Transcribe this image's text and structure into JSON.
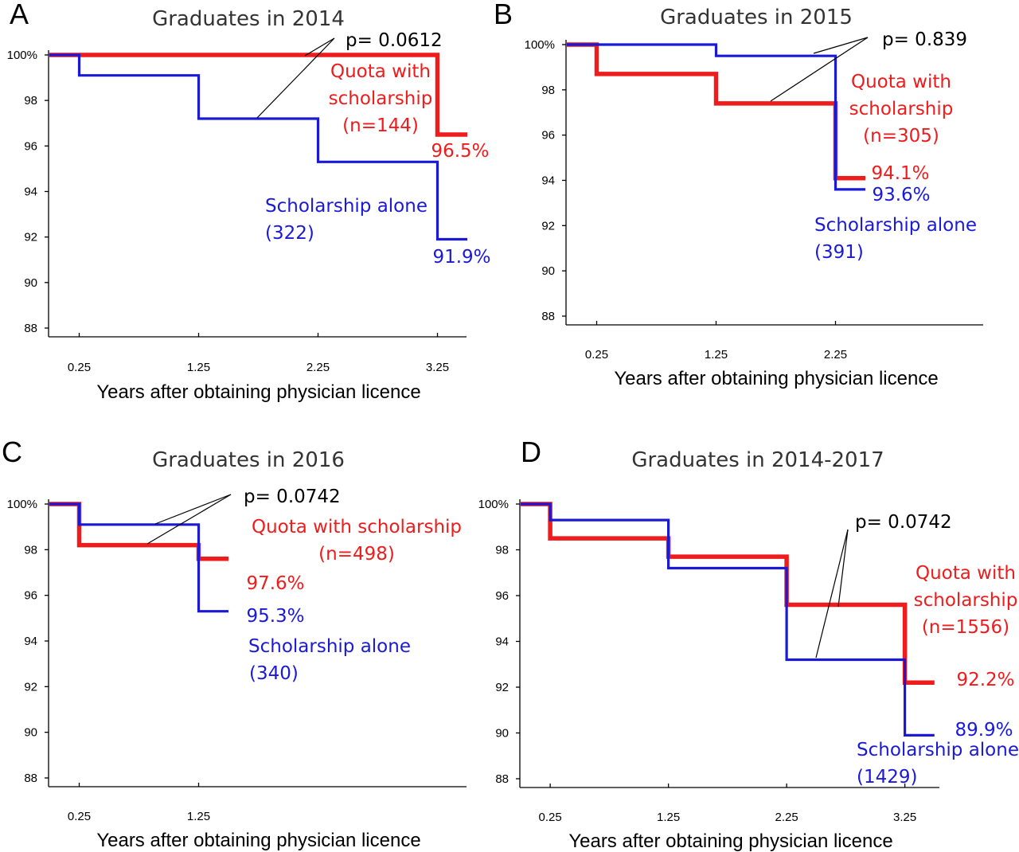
{
  "colors": {
    "quota": "#ee1c1c",
    "scholarship": "#1a1ad6"
  },
  "chart_data": [
    {
      "type": "line",
      "step": true,
      "panel": "A",
      "title": "Graduates in 2014",
      "xlabel": "Years after obtaining physician licence",
      "x_ticks": [
        "0.25",
        "1.25",
        "2.25",
        "3.25"
      ],
      "y_ticks": [
        "100%",
        "98",
        "96",
        "94",
        "92",
        "90",
        "88"
      ],
      "ylim": [
        88,
        100
      ],
      "series": [
        {
          "key": "quota",
          "points": [
            [
              0,
              100
            ],
            [
              3.25,
              100
            ],
            [
              3.25,
              96.5
            ],
            [
              3.5,
              96.5
            ]
          ]
        },
        {
          "key": "scholarship",
          "points": [
            [
              0,
              100
            ],
            [
              0.25,
              100
            ],
            [
              0.25,
              99.1
            ],
            [
              1.25,
              99.1
            ],
            [
              1.25,
              97.2
            ],
            [
              2.25,
              97.2
            ],
            [
              2.25,
              95.3
            ],
            [
              3.25,
              95.3
            ],
            [
              3.25,
              91.9
            ],
            [
              3.5,
              91.9
            ]
          ]
        }
      ],
      "p_value": "p= 0.0612",
      "quota_label": [
        "Quota with",
        "scholarship",
        "(n=144)"
      ],
      "quota_end": "96.5%",
      "scholarship_label": [
        "Scholarship alone",
        "(322)"
      ],
      "scholarship_end": "91.9%"
    },
    {
      "type": "line",
      "step": true,
      "panel": "B",
      "title": "Graduates in 2015",
      "xlabel": "Years after obtaining physician licence",
      "x_ticks": [
        "0.25",
        "1.25",
        "2.25"
      ],
      "y_ticks": [
        "100%",
        "98",
        "96",
        "94",
        "92",
        "90",
        "88"
      ],
      "ylim": [
        88,
        100
      ],
      "series": [
        {
          "key": "quota",
          "points": [
            [
              0,
              100
            ],
            [
              0.25,
              100
            ],
            [
              0.25,
              98.7
            ],
            [
              1.25,
              98.7
            ],
            [
              1.25,
              97.4
            ],
            [
              2.25,
              97.4
            ],
            [
              2.25,
              94.1
            ],
            [
              2.5,
              94.1
            ]
          ]
        },
        {
          "key": "scholarship",
          "points": [
            [
              0,
              100
            ],
            [
              1.25,
              100
            ],
            [
              1.25,
              99.5
            ],
            [
              2.25,
              99.5
            ],
            [
              2.25,
              93.6
            ],
            [
              2.5,
              93.6
            ]
          ]
        }
      ],
      "p_value": "p= 0.839",
      "quota_label": [
        "Quota with",
        "scholarship",
        "(n=305)"
      ],
      "quota_end": "94.1%",
      "scholarship_label": [
        "Scholarship alone",
        "(391)"
      ],
      "scholarship_end": "93.6%"
    },
    {
      "type": "line",
      "step": true,
      "panel": "C",
      "title": "Graduates in 2016",
      "xlabel": "Years after obtaining physician licence",
      "x_ticks": [
        "0.25",
        "1.25"
      ],
      "y_ticks": [
        "100%",
        "98",
        "96",
        "94",
        "92",
        "90",
        "88"
      ],
      "ylim": [
        88,
        100
      ],
      "series": [
        {
          "key": "quota",
          "points": [
            [
              0,
              100
            ],
            [
              0.25,
              100
            ],
            [
              0.25,
              98.2
            ],
            [
              1.25,
              98.2
            ],
            [
              1.25,
              97.6
            ],
            [
              1.5,
              97.6
            ]
          ]
        },
        {
          "key": "scholarship",
          "points": [
            [
              0,
              100
            ],
            [
              0.25,
              100
            ],
            [
              0.25,
              99.1
            ],
            [
              1.25,
              99.1
            ],
            [
              1.25,
              95.3
            ],
            [
              1.5,
              95.3
            ]
          ]
        }
      ],
      "p_value": "p= 0.0742",
      "quota_label": [
        "Quota with scholarship",
        "(n=498)"
      ],
      "quota_end": "97.6%",
      "scholarship_label": [
        "Scholarship alone",
        "(340)"
      ],
      "scholarship_end": "95.3%"
    },
    {
      "type": "line",
      "step": true,
      "panel": "D",
      "title": "Graduates in 2014-2017",
      "xlabel": "Years after obtaining physician licence",
      "x_ticks": [
        "0.25",
        "1.25",
        "2.25",
        "3.25"
      ],
      "y_ticks": [
        "100%",
        "98",
        "96",
        "94",
        "92",
        "90",
        "88"
      ],
      "ylim": [
        88,
        100
      ],
      "series": [
        {
          "key": "quota",
          "points": [
            [
              0,
              100
            ],
            [
              0.25,
              100
            ],
            [
              0.25,
              98.5
            ],
            [
              1.25,
              98.5
            ],
            [
              1.25,
              97.7
            ],
            [
              2.25,
              97.7
            ],
            [
              2.25,
              95.6
            ],
            [
              3.25,
              95.6
            ],
            [
              3.25,
              92.2
            ],
            [
              3.5,
              92.2
            ]
          ]
        },
        {
          "key": "scholarship",
          "points": [
            [
              0,
              100
            ],
            [
              0.25,
              100
            ],
            [
              0.25,
              99.3
            ],
            [
              1.25,
              99.3
            ],
            [
              1.25,
              97.2
            ],
            [
              2.25,
              97.2
            ],
            [
              2.25,
              93.2
            ],
            [
              3.25,
              93.2
            ],
            [
              3.25,
              89.9
            ],
            [
              3.5,
              89.9
            ]
          ]
        }
      ],
      "p_value": "p= 0.0742",
      "quota_label": [
        "Quota with",
        "scholarship",
        "(n=1556)"
      ],
      "quota_end": "92.2%",
      "scholarship_label": [
        "Scholarship alone",
        "(1429)"
      ],
      "scholarship_end": "89.9%"
    }
  ]
}
